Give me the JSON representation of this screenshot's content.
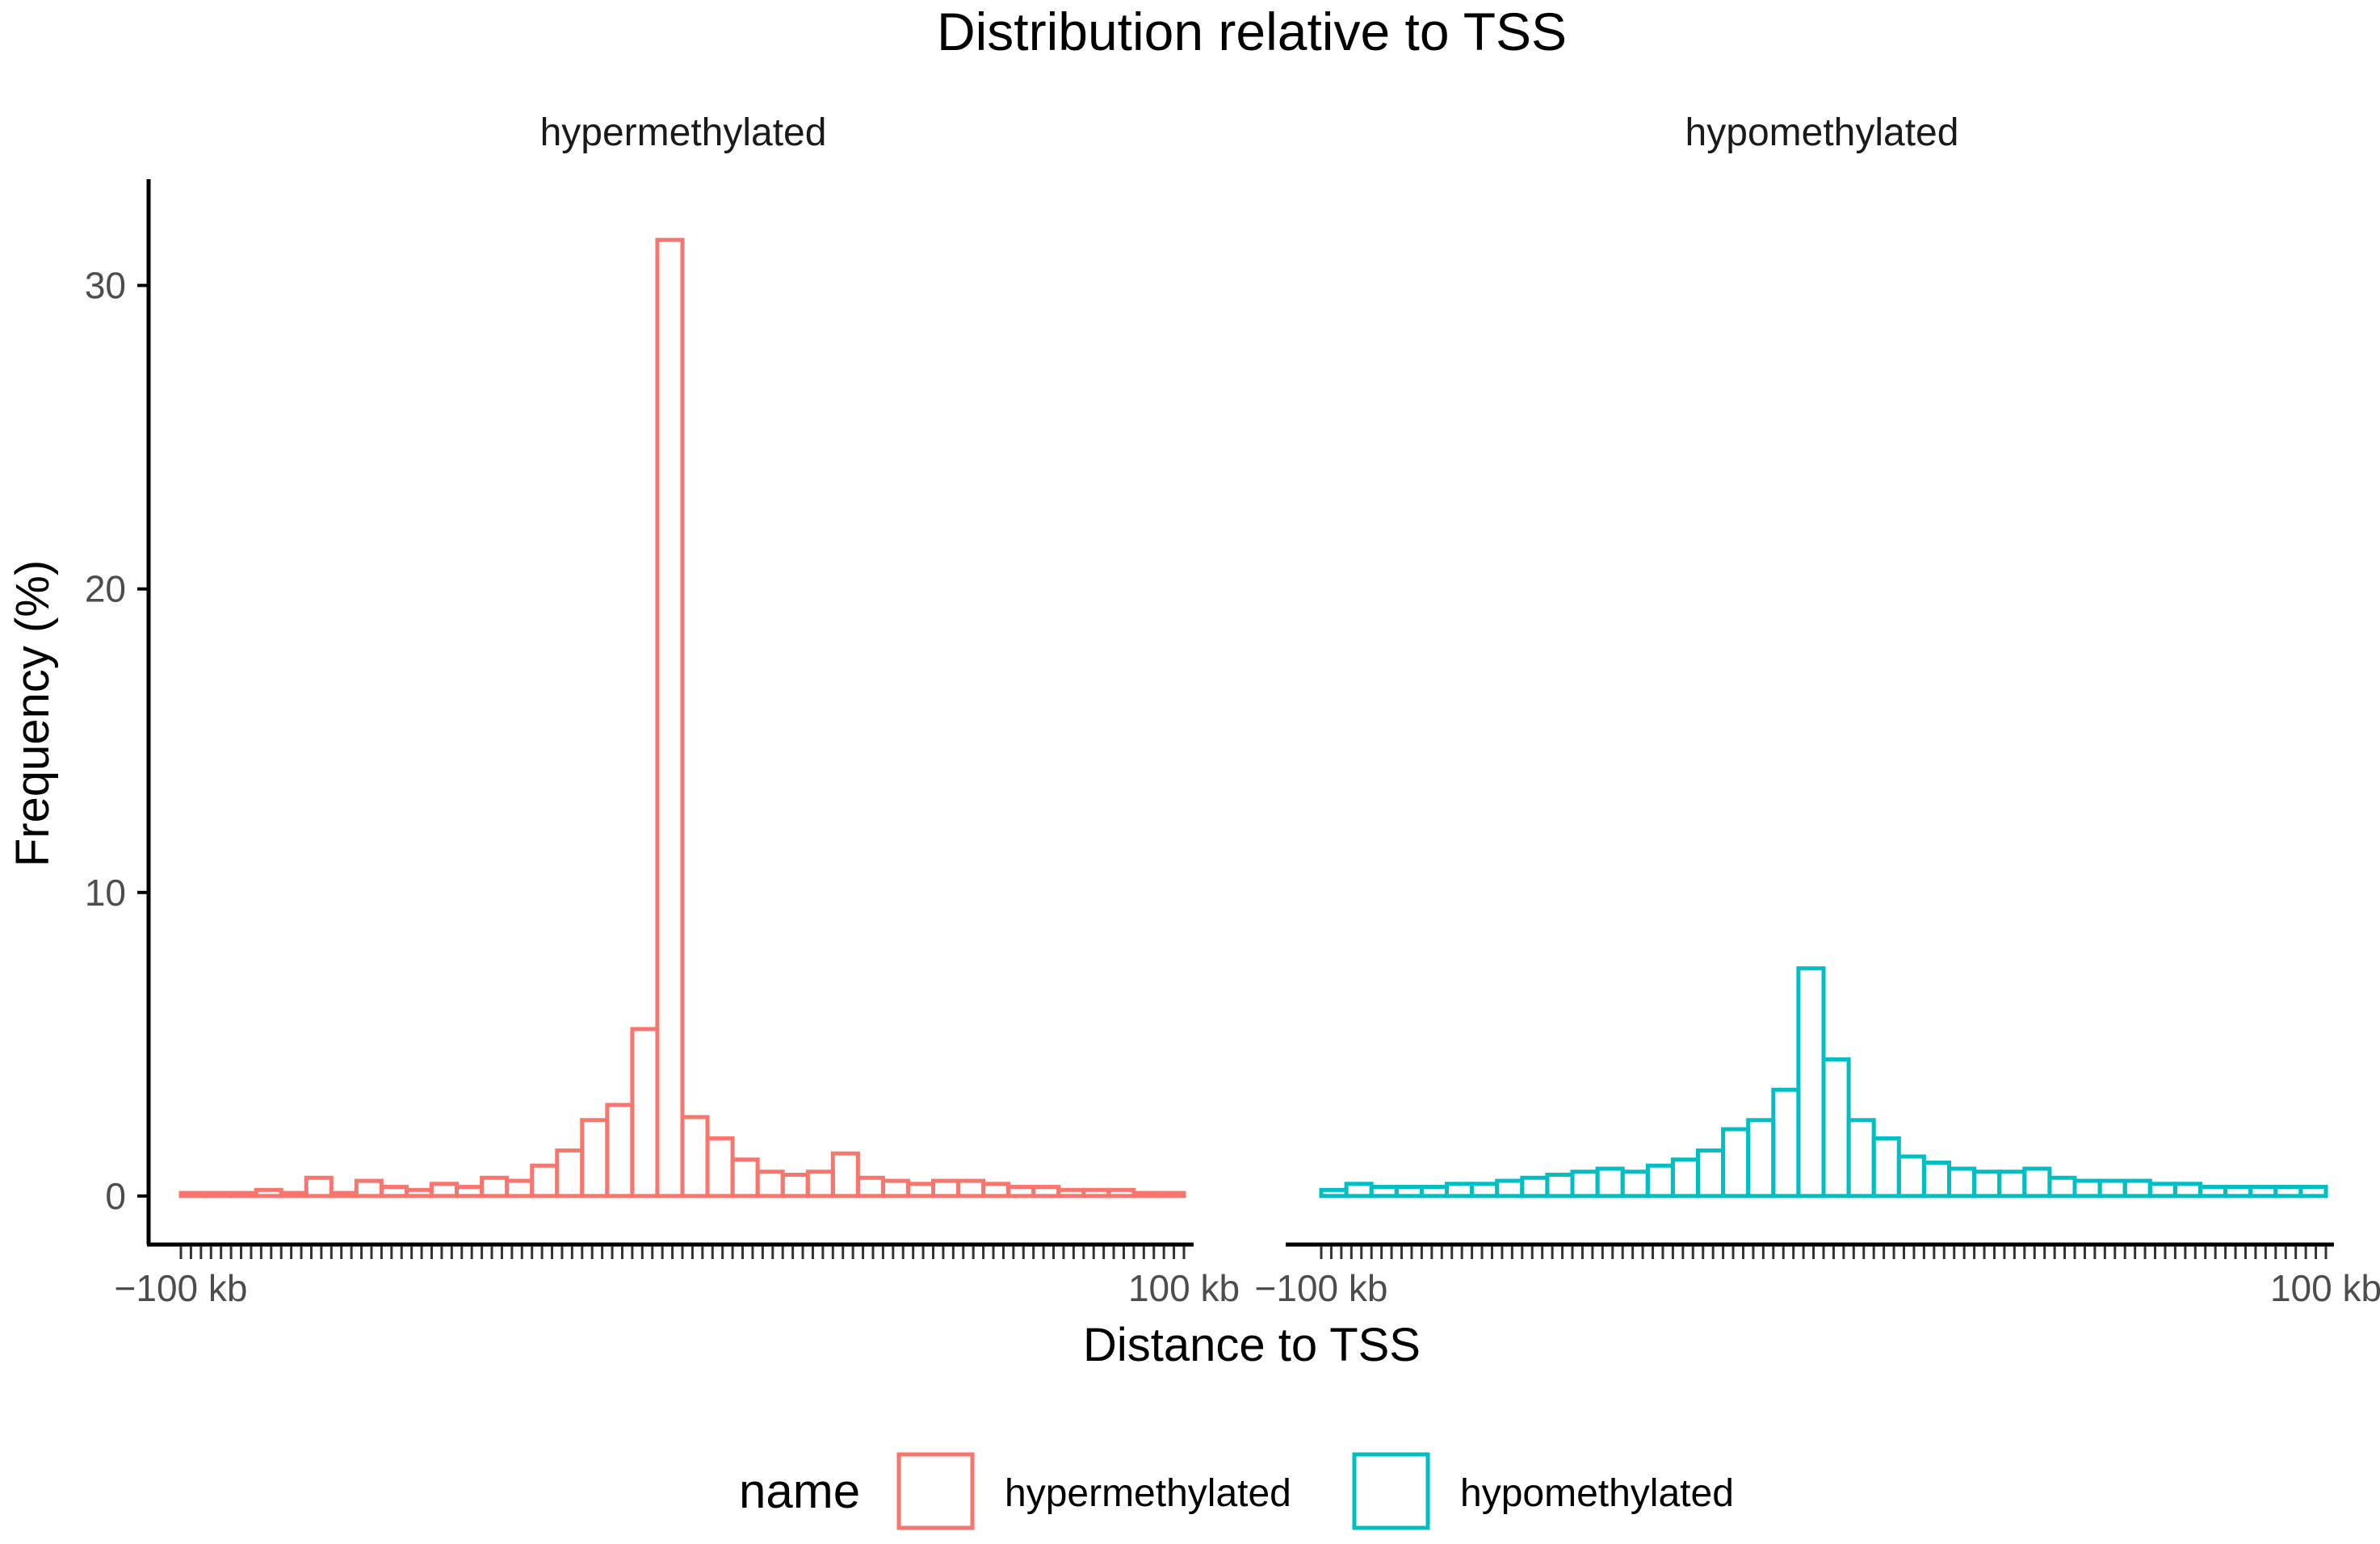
{
  "chart_data": {
    "type": "histogram",
    "title": "Distribution relative to TSS",
    "xlabel": "Distance to TSS",
    "ylabel": "Frequency (%)",
    "ylim": [
      -1.6,
      33.5
    ],
    "yticks": [
      0,
      10,
      20,
      30
    ],
    "x_tick_labels": [
      "−100 kb",
      "100 kb"
    ],
    "x_range_kb": [
      -100,
      100
    ],
    "legend": {
      "title": "name",
      "position": "bottom",
      "entries": [
        {
          "label": "hypermethylated",
          "color": "#F8766D"
        },
        {
          "label": "hypomethylated",
          "color": "#00BFC4"
        }
      ]
    },
    "panels": [
      {
        "name": "hypermethylated",
        "color": "#F8766D",
        "bins_kb": [
          -95,
          -90,
          -85,
          -80,
          -75,
          -70,
          -65,
          -60,
          -55,
          -50,
          -45,
          -40,
          -35,
          -30,
          -25,
          -20,
          -15,
          -10,
          -5,
          0,
          5,
          10,
          15,
          20,
          25,
          30,
          35,
          40,
          45,
          50,
          55,
          60,
          65,
          70,
          75,
          80,
          85,
          90,
          95,
          100
        ],
        "values": [
          0.1,
          0.1,
          0.1,
          0.2,
          0.1,
          0.6,
          0.1,
          0.5,
          0.3,
          0.2,
          0.4,
          0.3,
          0.6,
          0.5,
          1.0,
          1.5,
          2.5,
          3.0,
          5.5,
          31.5,
          2.6,
          1.9,
          1.2,
          0.8,
          0.7,
          0.8,
          1.4,
          0.6,
          0.5,
          0.4,
          0.5,
          0.5,
          0.4,
          0.3,
          0.3,
          0.2,
          0.2,
          0.2,
          0.1,
          0.1
        ]
      },
      {
        "name": "hypomethylated",
        "color": "#00BFC4",
        "bins_kb": [
          -95,
          -90,
          -85,
          -80,
          -75,
          -70,
          -65,
          -60,
          -55,
          -50,
          -45,
          -40,
          -35,
          -30,
          -25,
          -20,
          -15,
          -10,
          -5,
          0,
          5,
          10,
          15,
          20,
          25,
          30,
          35,
          40,
          45,
          50,
          55,
          60,
          65,
          70,
          75,
          80,
          85,
          90,
          95,
          100
        ],
        "values": [
          0.2,
          0.4,
          0.3,
          0.3,
          0.3,
          0.4,
          0.4,
          0.5,
          0.6,
          0.7,
          0.8,
          0.9,
          0.8,
          1.0,
          1.2,
          1.5,
          2.2,
          2.5,
          3.5,
          7.5,
          4.5,
          2.5,
          1.9,
          1.3,
          1.1,
          0.9,
          0.8,
          0.8,
          0.9,
          0.6,
          0.5,
          0.5,
          0.5,
          0.4,
          0.4,
          0.3,
          0.3,
          0.3,
          0.3,
          0.3
        ]
      }
    ]
  }
}
